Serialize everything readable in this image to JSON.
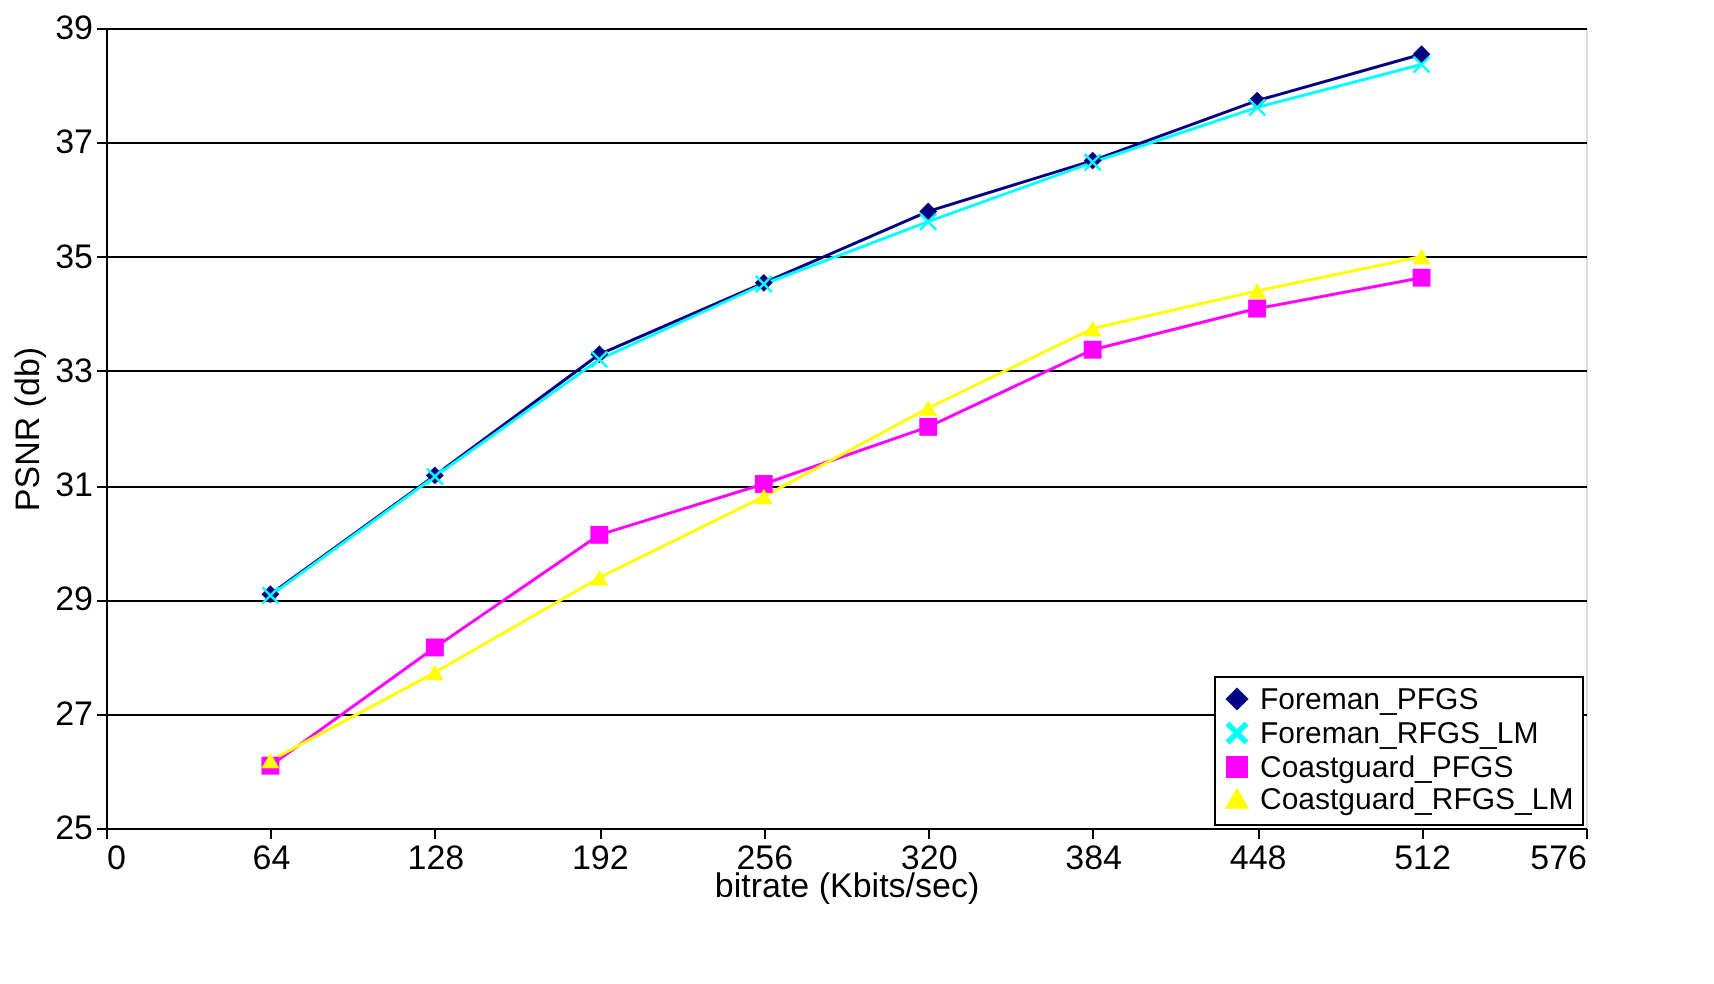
{
  "chart_data": {
    "type": "line",
    "xlabel": "bitrate (Kbits/sec)",
    "ylabel": "PSNR (db)",
    "x": [
      64,
      128,
      192,
      256,
      320,
      384,
      448,
      512
    ],
    "xlim": [
      0,
      576
    ],
    "xticks": [
      0,
      64,
      128,
      192,
      256,
      320,
      384,
      448,
      512,
      576
    ],
    "ylim": [
      25,
      39
    ],
    "yticks": [
      25,
      27,
      29,
      31,
      33,
      35,
      37,
      39
    ],
    "grid": "y",
    "legend": "bottom right",
    "series": [
      {
        "name": "Foreman_PFGS",
        "color": "#000080",
        "marker": "diamond",
        "values": [
          29.09,
          31.17,
          33.29,
          34.54,
          35.79,
          36.68,
          37.73,
          38.54
        ]
      },
      {
        "name": "Foreman_RFGS_LM",
        "color": "#00ffff",
        "marker": "cross",
        "values": [
          29.07,
          31.15,
          33.2,
          34.52,
          35.61,
          36.65,
          37.61,
          38.36
        ]
      },
      {
        "name": "Coastguard_PFGS",
        "color": "#ff00ff",
        "marker": "square",
        "values": [
          26.09,
          28.16,
          30.13,
          31.02,
          32.02,
          33.37,
          34.09,
          34.63
        ]
      },
      {
        "name": "Coastguard_RFGS_LM",
        "color": "#ffff00",
        "marker": "triangle",
        "values": [
          26.18,
          27.72,
          29.38,
          30.8,
          32.35,
          33.74,
          34.4,
          35.0
        ]
      }
    ]
  }
}
